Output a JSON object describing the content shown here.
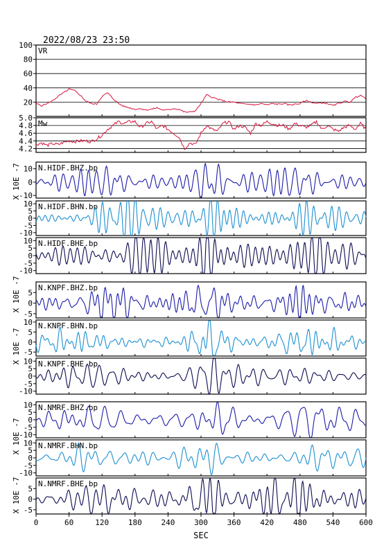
{
  "header": {
    "title": "2022/08/23 23:50"
  },
  "colors": {
    "frame": "#000000",
    "vr_line": "#d4143c",
    "mw_line": "#d4143c",
    "bhz": "#1a1aa6",
    "bhn": "#1a8fd0",
    "bhe": "#0a0a50"
  },
  "chart_data": {
    "type": "line",
    "xlabel": "SEC",
    "xlim": [
      0,
      600
    ],
    "x_ticks": [
      0,
      60,
      120,
      180,
      240,
      300,
      360,
      420,
      480,
      540,
      600
    ],
    "panels": [
      {
        "label": "VR",
        "ylim": [
          0,
          100
        ],
        "y_ticks": [
          20,
          40,
          60,
          80,
          100
        ],
        "grid": true,
        "series": {
          "x": [
            0,
            10,
            20,
            30,
            40,
            50,
            60,
            70,
            80,
            90,
            100,
            110,
            120,
            130,
            140,
            150,
            160,
            170,
            180,
            190,
            200,
            210,
            220,
            230,
            240,
            250,
            260,
            270,
            280,
            290,
            300,
            310,
            320,
            330,
            340,
            350,
            360,
            370,
            380,
            390,
            400,
            410,
            420,
            430,
            440,
            450,
            460,
            470,
            480,
            490,
            500,
            510,
            520,
            530,
            540,
            550,
            560,
            570,
            580,
            590,
            600
          ],
          "values": [
            18,
            15,
            18,
            22,
            28,
            33,
            38,
            36,
            30,
            22,
            18,
            17,
            28,
            33,
            25,
            18,
            14,
            12,
            10,
            11,
            9,
            10,
            12,
            9,
            9,
            11,
            10,
            6,
            6,
            8,
            18,
            30,
            27,
            24,
            22,
            20,
            20,
            18,
            17,
            17,
            16,
            18,
            16,
            18,
            17,
            18,
            16,
            17,
            18,
            22,
            20,
            18,
            19,
            18,
            15,
            18,
            21,
            20,
            26,
            30,
            24
          ]
        }
      },
      {
        "label": "Mw",
        "ylim": [
          4.1,
          5.0
        ],
        "y_ticks": [
          4.2,
          4.4,
          4.6,
          4.8,
          5.0
        ],
        "grid": true,
        "series": {
          "x": [
            0,
            10,
            20,
            30,
            40,
            50,
            60,
            70,
            80,
            90,
            100,
            110,
            120,
            130,
            140,
            150,
            160,
            170,
            180,
            190,
            200,
            210,
            220,
            230,
            240,
            250,
            260,
            270,
            280,
            290,
            300,
            310,
            320,
            330,
            340,
            350,
            360,
            370,
            380,
            390,
            400,
            410,
            420,
            430,
            440,
            450,
            460,
            470,
            480,
            490,
            500,
            510,
            520,
            530,
            540,
            550,
            560,
            570,
            580,
            590,
            600
          ],
          "values": [
            4.3,
            4.35,
            4.28,
            4.33,
            4.3,
            4.36,
            4.4,
            4.38,
            4.4,
            4.4,
            4.38,
            4.45,
            4.55,
            4.7,
            4.8,
            4.9,
            4.85,
            4.9,
            4.9,
            4.75,
            4.85,
            4.9,
            4.7,
            4.8,
            4.7,
            4.6,
            4.5,
            4.2,
            4.35,
            4.3,
            4.6,
            4.8,
            4.7,
            4.65,
            4.85,
            4.9,
            4.7,
            4.8,
            4.75,
            4.6,
            4.85,
            4.8,
            4.9,
            4.85,
            4.8,
            4.8,
            4.7,
            4.85,
            4.8,
            4.75,
            4.8,
            4.9,
            4.7,
            4.8,
            4.7,
            4.65,
            4.75,
            4.8,
            4.7,
            4.85,
            4.7
          ]
        }
      },
      {
        "label": "N.HIDF.BHZ.bp",
        "component": "bhz",
        "ylim": [
          -12,
          15
        ],
        "y_ticks": [
          -10,
          0,
          10
        ],
        "amp": 7,
        "seed": 11
      },
      {
        "label": "N.HIDF.BHN.bp",
        "component": "bhn",
        "ylim": [
          -12,
          12
        ],
        "y_ticks": [
          -10,
          -5,
          0,
          5,
          10
        ],
        "amp": 7,
        "seed": 23
      },
      {
        "label": "N.HIDF.BHE.bp",
        "component": "bhe",
        "ylim": [
          -12,
          12
        ],
        "y_ticks": [
          -10,
          -5,
          0,
          5,
          10
        ],
        "amp": 7,
        "seed": 37
      },
      {
        "label": "N.KNPF.BHZ.bp",
        "component": "bhz",
        "ylim": [
          -7,
          10
        ],
        "y_ticks": [
          -5,
          0,
          5
        ],
        "amp": 4.5,
        "seed": 41
      },
      {
        "label": "N.KNPF.BHN.bp",
        "component": "bhn",
        "ylim": [
          -7,
          11
        ],
        "y_ticks": [
          -5,
          0,
          5,
          10
        ],
        "amp": 4.5,
        "seed": 53
      },
      {
        "label": "N.KNPF.BHE.bp",
        "component": "bhe",
        "ylim": [
          -12,
          12
        ],
        "y_ticks": [
          -10,
          -5,
          0,
          5,
          10
        ],
        "amp": 6,
        "seed": 67
      },
      {
        "label": "N.NMRF.BHZ.bp",
        "component": "bhz",
        "ylim": [
          -12,
          12
        ],
        "y_ticks": [
          -10,
          -5,
          0,
          5,
          10
        ],
        "amp": 6,
        "seed": 71
      },
      {
        "label": "N.NMRF.BHN.bp",
        "component": "bhn",
        "ylim": [
          -12,
          12
        ],
        "y_ticks": [
          -10,
          -5,
          0,
          5,
          10
        ],
        "amp": 6,
        "seed": 83
      },
      {
        "label": "N.NMRF.BHE.bp",
        "component": "bhe",
        "ylim": [
          -7,
          10
        ],
        "y_ticks": [
          -5,
          0,
          5
        ],
        "amp": 4.5,
        "seed": 97
      }
    ],
    "ylabel_pairs": [
      {
        "text": "X 10E -7"
      },
      {
        "text": "X 10E -7"
      },
      {
        "text": "X 10E -7"
      },
      {
        "text": "X 10E -7"
      },
      {
        "text": "X 10E -7"
      }
    ]
  }
}
